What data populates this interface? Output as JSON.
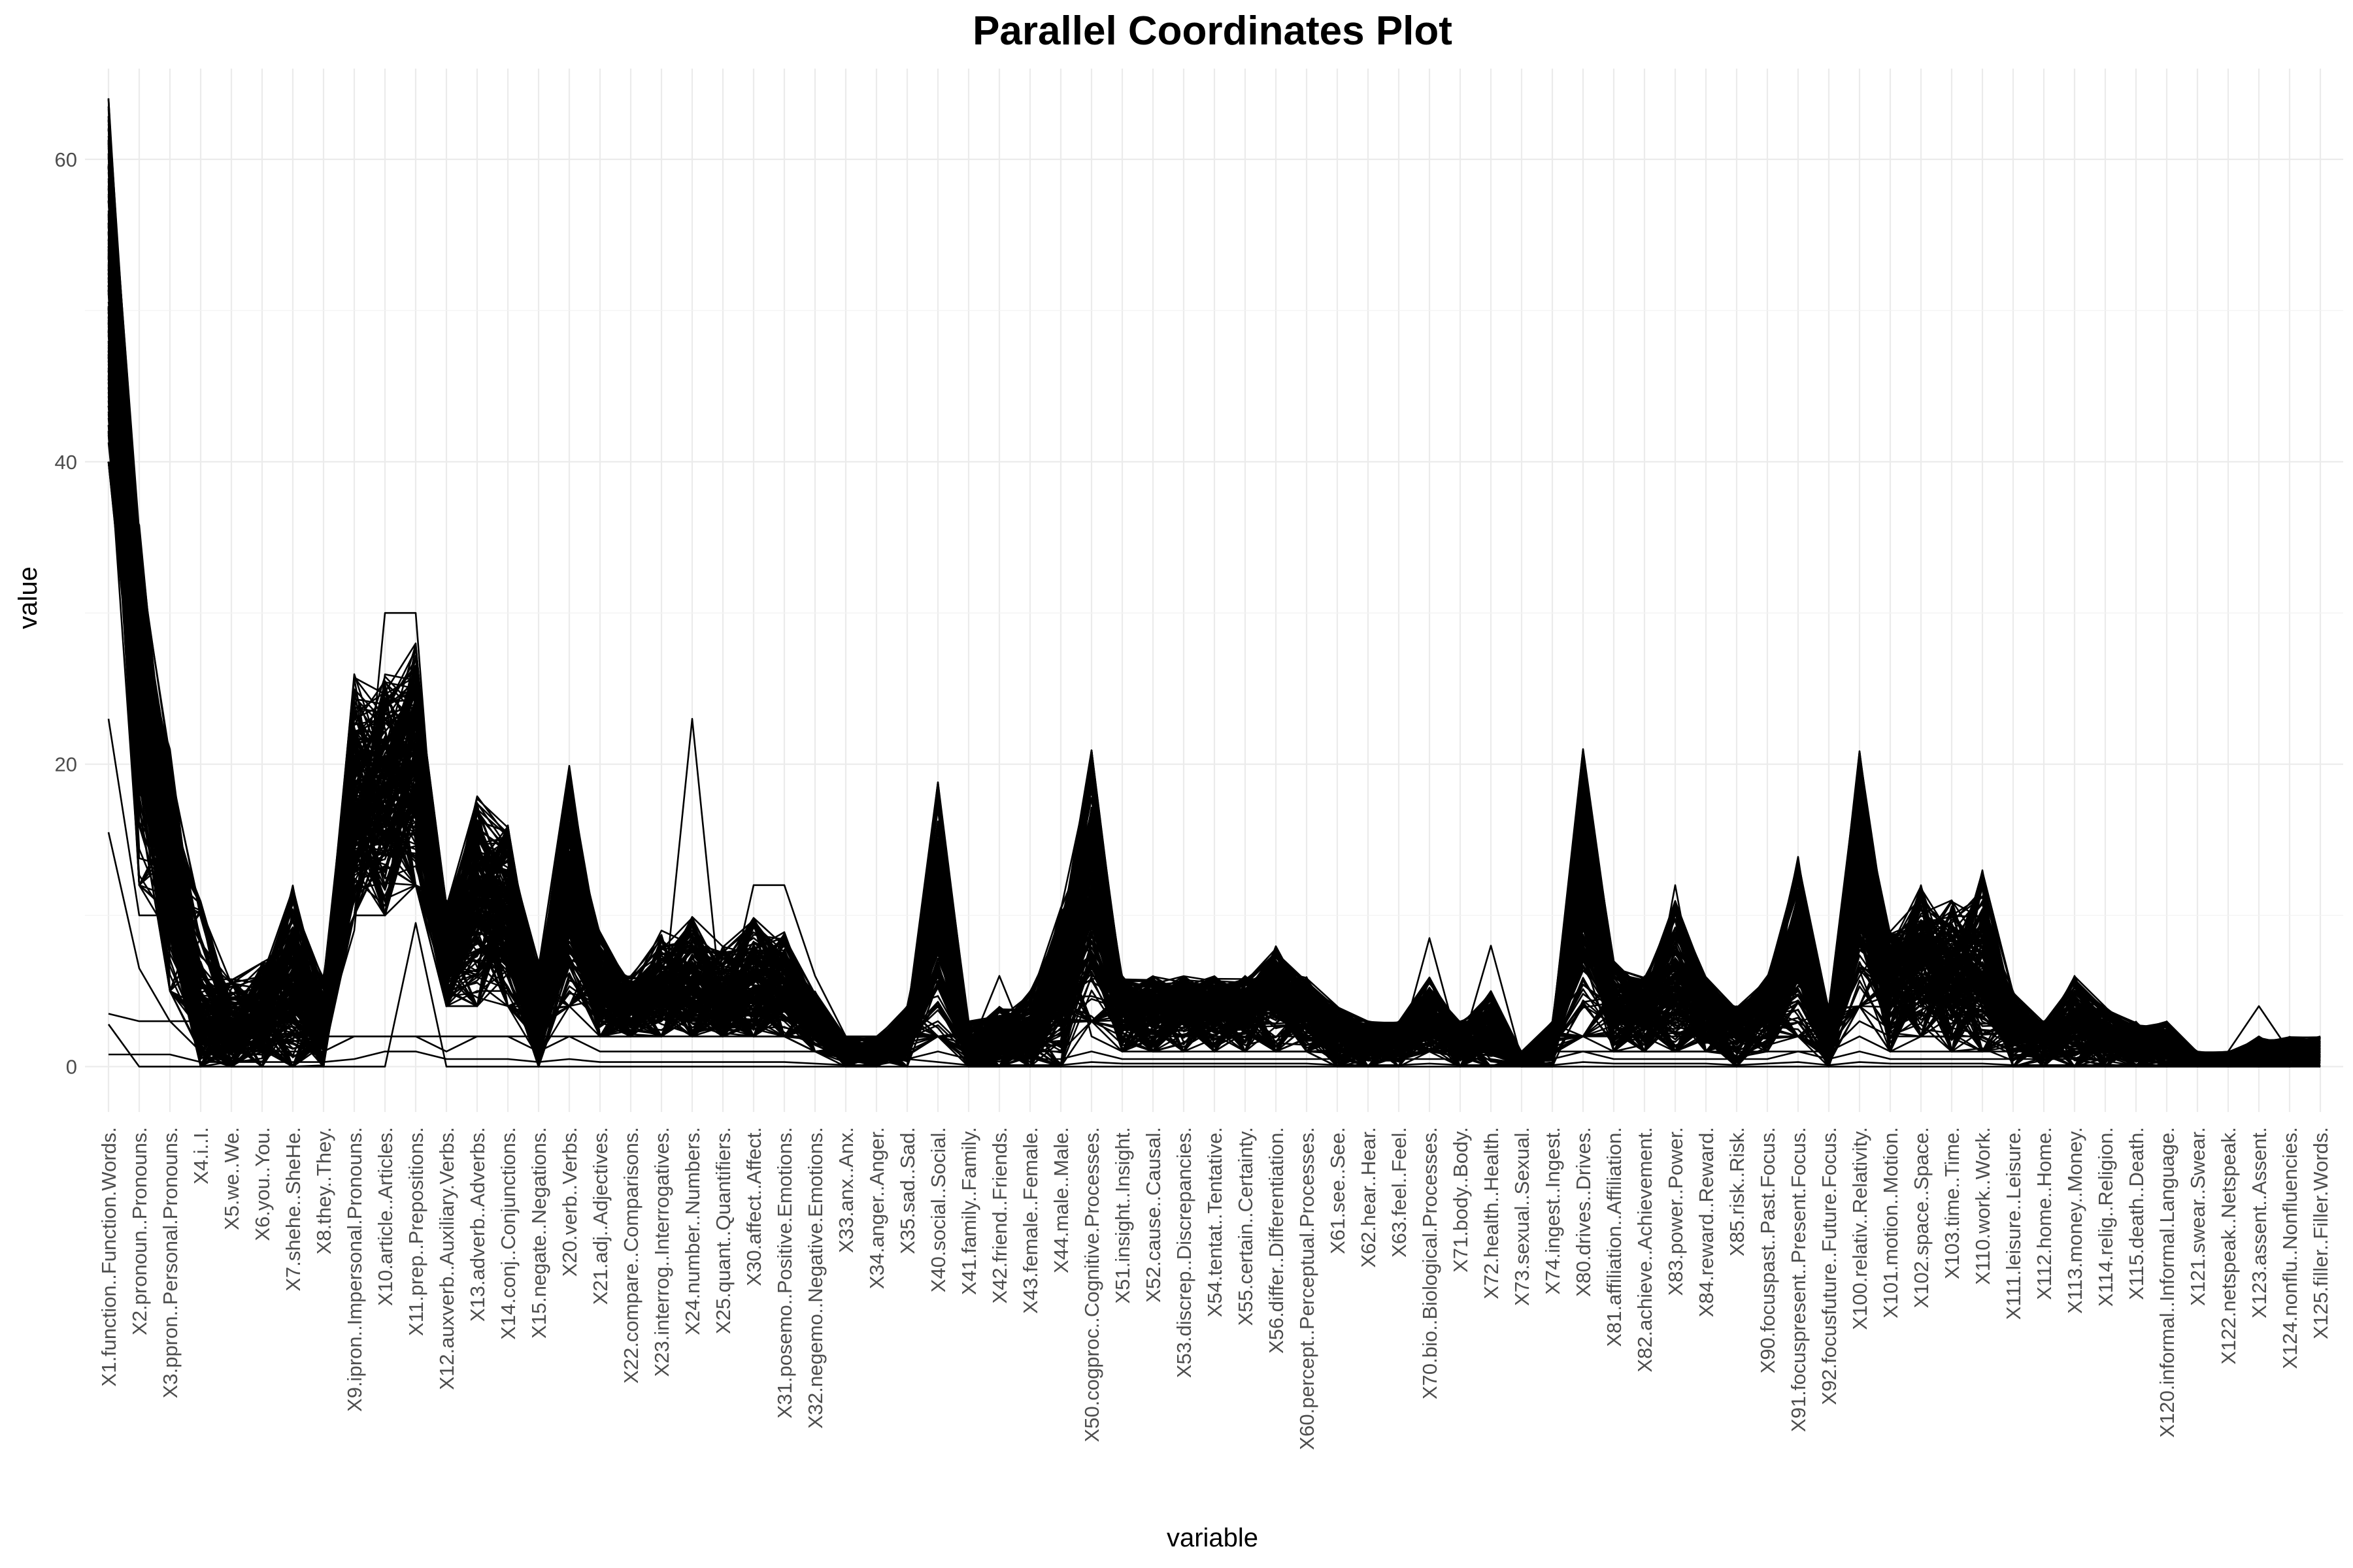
{
  "chart_data": {
    "type": "line",
    "title": "Parallel Coordinates Plot",
    "xlabel": "variable",
    "ylabel": "value",
    "ylim": [
      -3,
      66
    ],
    "y_ticks": [
      0,
      20,
      40,
      60
    ],
    "grid": true,
    "legend": "none",
    "categories": [
      "X1.function..Function.Words.",
      "X2.pronoun..Pronouns.",
      "X3.ppron..Personal.Pronouns.",
      "X4.i..I.",
      "X5.we..We.",
      "X6.you..You.",
      "X7.shehe..SheHe.",
      "X8.they..They.",
      "X9.ipron..Impersonal.Pronouns.",
      "X10.article..Articles.",
      "X11.prep..Prepositions.",
      "X12.auxverb..Auxiliary.Verbs.",
      "X13.adverb..Adverbs.",
      "X14.conj..Conjunctions.",
      "X15.negate..Negations.",
      "X20.verb..Verbs.",
      "X21.adj..Adjectives.",
      "X22.compare..Comparisons.",
      "X23.interrog..Interrogatives.",
      "X24.number..Numbers.",
      "X25.quant..Quantifiers.",
      "X30.affect..Affect.",
      "X31.posemo..Positive.Emotions.",
      "X32.negemo..Negative.Emotions.",
      "X33.anx..Anx.",
      "X34.anger..Anger.",
      "X35.sad..Sad.",
      "X40.social..Social.",
      "X41.family..Family.",
      "X42.friend..Friends.",
      "X43.female..Female.",
      "X44.male..Male.",
      "X50.cogproc..Cognitive.Processes.",
      "X51.insight..Insight.",
      "X52.cause..Causal.",
      "X53.discrep..Discrepancies.",
      "X54.tentat..Tentative.",
      "X55.certain..Certainty.",
      "X56.differ..Differentiation.",
      "X60.percept..Perceptual.Processes.",
      "X61.see..See.",
      "X62.hear..Hear.",
      "X63.feel..Feel.",
      "X70.bio..Biological.Processes.",
      "X71.body..Body.",
      "X72.health..Health.",
      "X73.sexual..Sexual.",
      "X74.ingest..Ingest.",
      "X80.drives..Drives.",
      "X81.affiliation..Affiliation.",
      "X82.achieve..Achievement.",
      "X83.power..Power.",
      "X84.reward..Reward.",
      "X85.risk..Risk.",
      "X90.focuspast..Past.Focus.",
      "X91.focuspresent..Present.Focus.",
      "X92.focusfuture..Future.Focus.",
      "X100.relativ..Relativity.",
      "X101.motion..Motion.",
      "X102.space..Space.",
      "X103.time..Time.",
      "X110.work..Work.",
      "X111.leisure..Leisure.",
      "X112.home..Home.",
      "X113.money..Money.",
      "X114.relig..Religion.",
      "X115.death..Death.",
      "X120.informal..Informal.Language.",
      "X121.swear..Swear.",
      "X122.netspeak..Netspeak.",
      "X123.assent..Assent.",
      "X124.nonflu..Nonfluencies.",
      "X125.filler..Filler.Words."
    ],
    "series_count": 200,
    "series_seed": 12345,
    "band": {
      "lo": [
        40,
        12,
        5,
        0,
        0,
        0,
        0,
        0,
        10,
        10,
        12,
        4,
        4,
        4,
        0,
        4,
        2,
        2,
        2,
        2,
        2,
        2,
        2,
        1,
        0,
        0,
        0,
        2,
        0,
        0,
        0,
        0,
        3,
        1,
        1,
        1,
        1,
        1,
        1,
        1,
        0,
        0,
        0,
        1,
        0,
        0,
        0,
        0,
        2,
        1,
        1,
        1,
        1,
        0,
        1,
        2,
        0,
        4,
        1,
        2,
        1,
        1,
        0,
        0,
        0,
        0,
        0,
        0,
        0,
        0,
        0,
        0,
        0
      ],
      "hi": [
        65,
        36,
        21,
        11,
        6,
        7,
        12,
        6,
        26,
        26,
        28,
        11,
        18,
        16,
        7,
        20,
        9,
        6,
        9,
        10,
        8,
        10,
        9,
        5,
        2,
        2,
        4,
        19,
        3,
        4,
        5,
        11,
        21,
        6,
        6,
        6,
        6,
        6,
        8,
        6,
        4,
        3,
        3,
        6,
        3,
        5,
        1,
        3,
        21,
        7,
        6,
        11,
        6,
        4,
        6,
        14,
        4,
        21,
        9,
        12,
        11,
        13,
        5,
        3,
        6,
        4,
        3,
        3,
        1,
        1,
        2,
        2,
        2
      ],
      "core": [
        52,
        26,
        13,
        3,
        2,
        3,
        5,
        2,
        17,
        18,
        20,
        7,
        11,
        10,
        3,
        12,
        5,
        4,
        5,
        5,
        4,
        5,
        5,
        3,
        1,
        1,
        2,
        10,
        1,
        2,
        2,
        5,
        12,
        4,
        4,
        4,
        4,
        4,
        5,
        4,
        2,
        2,
        2,
        3,
        2,
        2,
        0.5,
        1.5,
        12,
        4,
        4,
        5,
        4,
        3,
        4,
        7,
        2,
        12,
        6,
        7,
        6,
        6,
        3,
        2,
        3,
        2,
        1.5,
        1.5,
        0.5,
        0.5,
        1,
        1,
        1
      ]
    },
    "outlier_series": [
      {
        "values": [
          23,
          10,
          10,
          3,
          3,
          3,
          3,
          2,
          9,
          30,
          30,
          4,
          5,
          5,
          2,
          5,
          3,
          3,
          3,
          23,
          3,
          12,
          12,
          6,
          2,
          2,
          2,
          3,
          1,
          1,
          1,
          1,
          3,
          2,
          2,
          2,
          2,
          2,
          2,
          2,
          1,
          1,
          1,
          2,
          1,
          1,
          0.5,
          1,
          2,
          2,
          2,
          2,
          2,
          1,
          2,
          2,
          1,
          3,
          2,
          2,
          2,
          2,
          1,
          1,
          1,
          1,
          1,
          1,
          0.3,
          1,
          4,
          1,
          2
        ]
      },
      {
        "values": [
          15.5,
          6.5,
          3,
          3,
          3,
          3,
          3,
          2,
          2,
          2,
          2,
          2,
          2,
          2,
          2,
          2,
          2,
          2,
          2,
          2,
          2,
          2,
          2,
          2,
          1,
          1,
          1,
          2,
          1,
          6,
          1,
          10,
          2,
          1,
          1,
          1,
          1,
          1,
          1,
          1,
          1,
          1,
          1,
          8.5,
          1,
          8,
          0.5,
          1,
          1,
          1,
          1,
          12,
          1,
          1,
          1,
          1,
          1,
          2,
          1,
          1,
          1,
          1,
          1,
          1,
          6,
          1,
          1,
          1,
          0.3,
          0.5,
          1,
          1,
          1
        ]
      },
      {
        "values": [
          2.8,
          0,
          0,
          0,
          0,
          0,
          0,
          0,
          0,
          0,
          9.5,
          0,
          0,
          0,
          0,
          0,
          0,
          0,
          0,
          0,
          0,
          0,
          0,
          0,
          0,
          0,
          0,
          0,
          0,
          0,
          0,
          0,
          0,
          0,
          0,
          0,
          0,
          0,
          0,
          0,
          0,
          0,
          0,
          0,
          0,
          0,
          0,
          0,
          0,
          0,
          0,
          0,
          0,
          0,
          0,
          0,
          0,
          0,
          0,
          0,
          0,
          0,
          0,
          0,
          0,
          0,
          0,
          0,
          0,
          0,
          0,
          0,
          0
        ]
      },
      {
        "values": [
          0.8,
          0.8,
          0.8,
          0.3,
          0.3,
          0.3,
          0.3,
          0.3,
          0.5,
          1,
          1,
          0.5,
          0.5,
          0.5,
          0.3,
          0.5,
          0.3,
          0.3,
          0.3,
          0.3,
          0.3,
          0.3,
          0.3,
          0.2,
          0.1,
          0.1,
          0.5,
          0.3,
          0.1,
          0.1,
          0.1,
          0.1,
          0.3,
          0.2,
          0.2,
          0.2,
          0.2,
          0.2,
          0.2,
          0.2,
          0.1,
          0.1,
          0.1,
          0.2,
          0.1,
          0.1,
          0.1,
          0.1,
          0.3,
          0.2,
          0.2,
          0.2,
          0.2,
          0.1,
          0.2,
          0.3,
          0.1,
          0.3,
          0.2,
          0.2,
          0.2,
          0.2,
          0.1,
          0.1,
          0.1,
          0.1,
          0.1,
          0.1,
          0.1,
          0.1,
          0.1,
          0.1,
          0.1
        ]
      },
      {
        "values": [
          3.5,
          3,
          3,
          1,
          1,
          1,
          1,
          1,
          2,
          2,
          2,
          1,
          2,
          2,
          1,
          2,
          1,
          1,
          1,
          1,
          1,
          1,
          1,
          1,
          0.5,
          0.5,
          0.5,
          1,
          0.5,
          0.5,
          0.5,
          0.5,
          1,
          0.5,
          0.5,
          0.5,
          0.5,
          0.5,
          0.5,
          0.5,
          0.5,
          0.5,
          0.5,
          0.5,
          0.5,
          0.5,
          0.2,
          0.5,
          1,
          0.5,
          0.5,
          0.5,
          0.5,
          0.5,
          0.5,
          1,
          0.5,
          1,
          0.5,
          0.5,
          0.5,
          0.5,
          0.5,
          0.5,
          0.5,
          0.5,
          0.5,
          0.5,
          0.2,
          0.2,
          0.2,
          0.2,
          0.2
        ]
      }
    ]
  }
}
